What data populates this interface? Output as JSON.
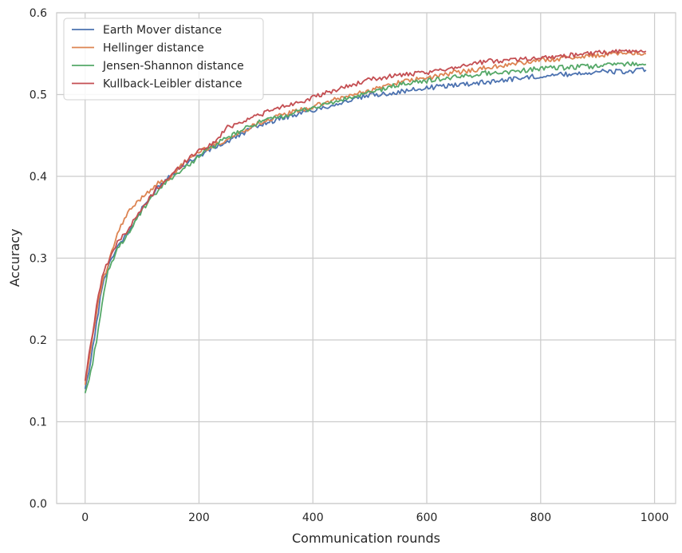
{
  "chart_data": {
    "type": "line",
    "title": "",
    "xlabel": "Communication rounds",
    "ylabel": "Accuracy",
    "xlim": [
      -50,
      1037
    ],
    "ylim": [
      0.0,
      0.6
    ],
    "xticks": [
      0,
      200,
      400,
      600,
      800,
      1000
    ],
    "yticks": [
      0.0,
      0.1,
      0.2,
      0.3,
      0.4,
      0.5,
      0.6
    ],
    "xtick_labels": [
      "0",
      "200",
      "400",
      "600",
      "800",
      "1000"
    ],
    "ytick_labels": [
      "0.0",
      "0.1",
      "0.2",
      "0.3",
      "0.4",
      "0.5",
      "0.6"
    ],
    "grid": true,
    "legend_position": "top-left",
    "series": [
      {
        "name": "Earth Mover distance",
        "color": "#4c72b0",
        "points": [
          [
            0,
            0.14
          ],
          [
            10,
            0.175
          ],
          [
            20,
            0.22
          ],
          [
            30,
            0.265
          ],
          [
            40,
            0.29
          ],
          [
            50,
            0.305
          ],
          [
            60,
            0.318
          ],
          [
            75,
            0.33
          ],
          [
            100,
            0.36
          ],
          [
            125,
            0.385
          ],
          [
            150,
            0.402
          ],
          [
            175,
            0.415
          ],
          [
            200,
            0.425
          ],
          [
            225,
            0.435
          ],
          [
            250,
            0.442
          ],
          [
            300,
            0.462
          ],
          [
            350,
            0.472
          ],
          [
            400,
            0.481
          ],
          [
            450,
            0.49
          ],
          [
            500,
            0.499
          ],
          [
            550,
            0.503
          ],
          [
            600,
            0.508
          ],
          [
            650,
            0.512
          ],
          [
            700,
            0.515
          ],
          [
            750,
            0.519
          ],
          [
            800,
            0.523
          ],
          [
            850,
            0.525
          ],
          [
            900,
            0.528
          ],
          [
            950,
            0.528
          ],
          [
            985,
            0.53
          ]
        ]
      },
      {
        "name": "Hellinger distance",
        "color": "#dd8452",
        "points": [
          [
            0,
            0.145
          ],
          [
            10,
            0.19
          ],
          [
            20,
            0.235
          ],
          [
            30,
            0.27
          ],
          [
            40,
            0.29
          ],
          [
            50,
            0.315
          ],
          [
            60,
            0.335
          ],
          [
            75,
            0.355
          ],
          [
            100,
            0.375
          ],
          [
            125,
            0.39
          ],
          [
            150,
            0.398
          ],
          [
            175,
            0.418
          ],
          [
            200,
            0.43
          ],
          [
            225,
            0.438
          ],
          [
            250,
            0.445
          ],
          [
            300,
            0.464
          ],
          [
            350,
            0.476
          ],
          [
            400,
            0.485
          ],
          [
            450,
            0.496
          ],
          [
            500,
            0.505
          ],
          [
            550,
            0.515
          ],
          [
            600,
            0.52
          ],
          [
            650,
            0.527
          ],
          [
            700,
            0.532
          ],
          [
            750,
            0.537
          ],
          [
            800,
            0.542
          ],
          [
            850,
            0.545
          ],
          [
            900,
            0.548
          ],
          [
            950,
            0.552
          ],
          [
            985,
            0.55
          ]
        ]
      },
      {
        "name": "Jensen-Shannon distance",
        "color": "#55a868",
        "points": [
          [
            0,
            0.135
          ],
          [
            10,
            0.16
          ],
          [
            20,
            0.2
          ],
          [
            30,
            0.245
          ],
          [
            40,
            0.282
          ],
          [
            50,
            0.3
          ],
          [
            60,
            0.315
          ],
          [
            75,
            0.33
          ],
          [
            100,
            0.358
          ],
          [
            125,
            0.38
          ],
          [
            150,
            0.398
          ],
          [
            175,
            0.41
          ],
          [
            200,
            0.425
          ],
          [
            225,
            0.437
          ],
          [
            250,
            0.447
          ],
          [
            300,
            0.465
          ],
          [
            350,
            0.474
          ],
          [
            400,
            0.484
          ],
          [
            450,
            0.493
          ],
          [
            500,
            0.502
          ],
          [
            550,
            0.512
          ],
          [
            600,
            0.517
          ],
          [
            650,
            0.521
          ],
          [
            700,
            0.526
          ],
          [
            750,
            0.528
          ],
          [
            800,
            0.532
          ],
          [
            850,
            0.533
          ],
          [
            900,
            0.535
          ],
          [
            950,
            0.538
          ],
          [
            985,
            0.537
          ]
        ]
      },
      {
        "name": "Kullback-Leibler distance",
        "color": "#c44e52",
        "points": [
          [
            0,
            0.15
          ],
          [
            10,
            0.195
          ],
          [
            20,
            0.24
          ],
          [
            30,
            0.28
          ],
          [
            40,
            0.295
          ],
          [
            50,
            0.31
          ],
          [
            60,
            0.322
          ],
          [
            75,
            0.335
          ],
          [
            100,
            0.36
          ],
          [
            125,
            0.385
          ],
          [
            150,
            0.4
          ],
          [
            175,
            0.418
          ],
          [
            200,
            0.432
          ],
          [
            225,
            0.44
          ],
          [
            250,
            0.46
          ],
          [
            300,
            0.474
          ],
          [
            350,
            0.486
          ],
          [
            400,
            0.496
          ],
          [
            450,
            0.508
          ],
          [
            500,
            0.518
          ],
          [
            550,
            0.524
          ],
          [
            600,
            0.526
          ],
          [
            650,
            0.534
          ],
          [
            700,
            0.54
          ],
          [
            750,
            0.543
          ],
          [
            800,
            0.545
          ],
          [
            850,
            0.548
          ],
          [
            900,
            0.551
          ],
          [
            950,
            0.553
          ],
          [
            985,
            0.553
          ]
        ]
      }
    ]
  }
}
